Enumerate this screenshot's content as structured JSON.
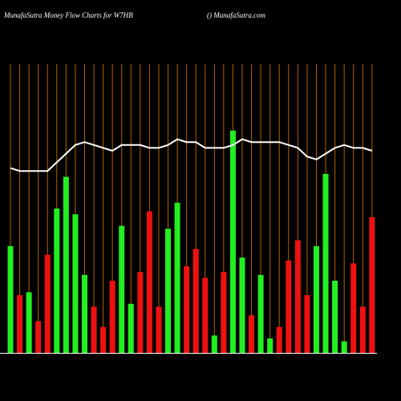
{
  "chart_data": {
    "type": "bar",
    "title": "MunafaSutra  Money Flow  Charts for W7HB",
    "subtitle": "() MunafaSutra.com",
    "ylim": [
      0,
      100
    ],
    "bars": {
      "values": [
        37,
        20,
        21,
        11,
        34,
        50,
        61,
        48,
        27,
        16,
        9,
        25,
        44,
        17,
        28,
        49,
        16,
        43,
        52,
        30,
        36,
        26,
        6,
        28,
        77,
        33,
        13,
        27,
        5,
        9,
        32,
        39,
        20,
        37,
        62,
        25,
        4,
        31,
        16,
        47
      ],
      "colors": [
        "#22ee22",
        "#ee1111",
        "#22ee22",
        "#ee1111",
        "#ee1111",
        "#22ee22",
        "#22ee22",
        "#22ee22",
        "#22ee22",
        "#ee1111",
        "#ee1111",
        "#ee1111",
        "#22ee22",
        "#22ee22",
        "#ee1111",
        "#ee1111",
        "#ee1111",
        "#22ee22",
        "#22ee22",
        "#ee1111",
        "#ee1111",
        "#ee1111",
        "#22ee22",
        "#ee1111",
        "#22ee22",
        "#22ee22",
        "#ee1111",
        "#22ee22",
        "#22ee22",
        "#ee1111",
        "#ee1111",
        "#ee1111",
        "#ee1111",
        "#22ee22",
        "#22ee22",
        "#22ee22",
        "#22ee22",
        "#ee1111",
        "#ee1111",
        "#ee1111"
      ]
    },
    "line": {
      "color": "#ffffff",
      "values": [
        64,
        63,
        63,
        63,
        63,
        66,
        69,
        72,
        73,
        72,
        71,
        70,
        72,
        72,
        72,
        71,
        71,
        72,
        74,
        73,
        73,
        71,
        71,
        71,
        72,
        74,
        73,
        73,
        73,
        73,
        72,
        71,
        68,
        67,
        69,
        71,
        72,
        71,
        71,
        70
      ]
    },
    "gridline_color": "#b36200"
  }
}
